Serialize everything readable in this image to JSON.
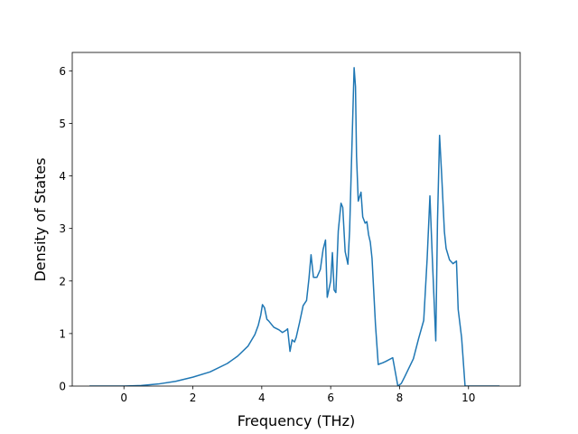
{
  "chart_data": {
    "type": "line",
    "title": "",
    "xlabel": "Frequency (THz)",
    "ylabel": "Density of States",
    "xlim": [
      -1.5,
      11.5
    ],
    "ylim": [
      0,
      6.35
    ],
    "xticks": [
      0,
      2,
      4,
      6,
      8,
      10
    ],
    "yticks": [
      0,
      1,
      2,
      3,
      4,
      5,
      6
    ],
    "xtick_labels": [
      "0",
      "2",
      "4",
      "6",
      "8",
      "10"
    ],
    "ytick_labels": [
      "0",
      "1",
      "2",
      "3",
      "4",
      "5",
      "6"
    ],
    "grid": false,
    "legend": "none",
    "colors": {
      "line": "#1f77b4",
      "axes": "#000000",
      "background": "#ffffff"
    },
    "series": [
      {
        "x": [
          -1.0,
          -0.5,
          0.0,
          0.5,
          1.0,
          1.5,
          2.0,
          2.5,
          3.0,
          3.3,
          3.6,
          3.8,
          3.9,
          3.97,
          4.02,
          4.08,
          4.15,
          4.2,
          4.35,
          4.5,
          4.6,
          4.7,
          4.75,
          4.82,
          4.88,
          4.95,
          5.0,
          5.1,
          5.2,
          5.3,
          5.37,
          5.43,
          5.5,
          5.6,
          5.7,
          5.78,
          5.85,
          5.9,
          6.0,
          6.05,
          6.1,
          6.15,
          6.22,
          6.3,
          6.35,
          6.42,
          6.5,
          6.55,
          6.6,
          6.68,
          6.72,
          6.75,
          6.8,
          6.88,
          6.93,
          7.0,
          7.05,
          7.1,
          7.15,
          7.2,
          7.3,
          7.38,
          7.45,
          7.5,
          7.6,
          7.8,
          7.95,
          8.05,
          8.15,
          8.4,
          8.55,
          8.7,
          8.8,
          8.88,
          8.95,
          9.05,
          9.1,
          9.16,
          9.22,
          9.3,
          9.35,
          9.45,
          9.55,
          9.65,
          9.7,
          9.8,
          9.9,
          10.0,
          10.5,
          10.9
        ],
        "y": [
          0.0,
          0.0,
          0.0,
          0.01,
          0.04,
          0.09,
          0.17,
          0.27,
          0.43,
          0.57,
          0.76,
          0.98,
          1.16,
          1.35,
          1.55,
          1.49,
          1.27,
          1.24,
          1.12,
          1.07,
          1.02,
          1.06,
          1.09,
          0.66,
          0.88,
          0.84,
          0.93,
          1.22,
          1.53,
          1.63,
          2.05,
          2.5,
          2.07,
          2.07,
          2.22,
          2.6,
          2.78,
          1.69,
          2.0,
          2.54,
          1.83,
          1.78,
          2.95,
          3.48,
          3.4,
          2.56,
          2.32,
          2.97,
          4.17,
          6.06,
          5.7,
          4.38,
          3.52,
          3.69,
          3.22,
          3.1,
          3.13,
          2.88,
          2.74,
          2.43,
          1.17,
          0.41,
          0.43,
          0.44,
          0.47,
          0.54,
          0.0,
          0.05,
          0.18,
          0.52,
          0.9,
          1.25,
          2.43,
          3.62,
          2.43,
          0.86,
          3.15,
          4.77,
          4.03,
          2.94,
          2.62,
          2.4,
          2.33,
          2.38,
          1.46,
          0.92,
          0.0,
          0.0,
          0.0,
          0.0
        ]
      }
    ]
  }
}
